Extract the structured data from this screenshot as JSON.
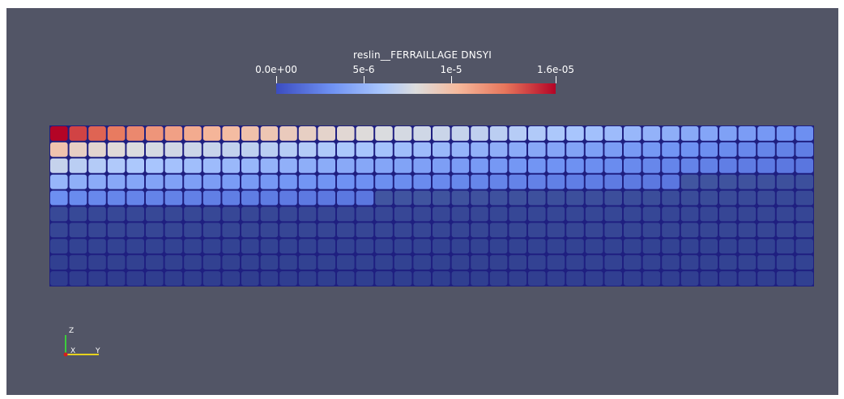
{
  "colorbar": {
    "title": "reslin__FERRAILLAGE DNSYI",
    "ticks": [
      {
        "label": "0.0e+00",
        "value": 0
      },
      {
        "label": "5e-6",
        "value": 5e-06
      },
      {
        "label": "1e-5",
        "value": 1e-05
      },
      {
        "label": "1.6e-05",
        "value": 1.6e-05
      }
    ],
    "range": [
      0,
      1.6e-05
    ],
    "colormap": [
      "#3b4cc0",
      "#6f92f3",
      "#aac7fd",
      "#dddddd",
      "#f6b99c",
      "#e7755b",
      "#b40426"
    ]
  },
  "mesh": {
    "columns": 40,
    "rows": 10,
    "edge_color": "#1f1f80",
    "max_at": "top-left",
    "description_values": "normalized field value per cell row (top to bottom) at left edge",
    "row_left_values": [
      1.0,
      0.62,
      0.42,
      0.28,
      0.16,
      0.06,
      0.05,
      0.04,
      0.03,
      0.02
    ],
    "row_right_values": [
      0.16,
      0.12,
      0.1,
      0.08,
      0.06,
      0.05,
      0.05,
      0.04,
      0.04,
      0.03
    ]
  },
  "axes": {
    "z_label": "Z",
    "x_label": "X",
    "y_label": "Y",
    "z_color": "#3ccd3c",
    "y_color": "#e6d21e",
    "x_color": "#d21e1e"
  }
}
